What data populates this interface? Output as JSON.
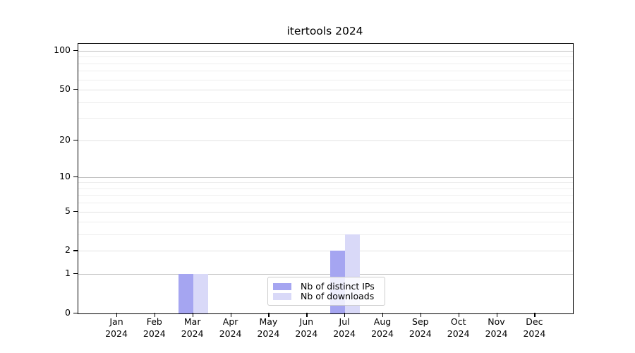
{
  "chart_data": {
    "type": "bar",
    "title": "itertools 2024",
    "categories": [
      "Jan 2024",
      "Feb 2024",
      "Mar 2024",
      "Apr 2024",
      "May 2024",
      "Jun 2024",
      "Jul 2024",
      "Aug 2024",
      "Sep 2024",
      "Oct 2024",
      "Nov 2024",
      "Dec 2024"
    ],
    "series": [
      {
        "name": "Nb of distinct IPs",
        "color": "#a5a5f1",
        "values": [
          0,
          0,
          1,
          0,
          0,
          0,
          2,
          0,
          0,
          0,
          0,
          0
        ]
      },
      {
        "name": "Nb of downloads",
        "color": "#d9d9f8",
        "values": [
          0,
          0,
          1,
          0,
          0,
          0,
          3,
          0,
          0,
          0,
          0,
          0
        ]
      }
    ],
    "yaxis": {
      "scale": "log-like (log1p), 0 at baseline",
      "tick_labels": [
        0,
        1,
        2,
        5,
        10,
        20,
        50,
        100
      ],
      "decade_gridlines": [
        1,
        10,
        100
      ],
      "mid_gridlines": [
        2,
        5,
        20,
        50
      ],
      "minor_gridlines": [
        3,
        4,
        6,
        7,
        8,
        9,
        30,
        40,
        60,
        70,
        80,
        90
      ],
      "top_value": 113.3
    },
    "legend": {
      "position": "lower center",
      "entries": [
        "Nb of distinct IPs",
        "Nb of downloads"
      ]
    },
    "colors": {
      "grid_decade": "#bfbfbf",
      "grid_mid": "#e2e2e2",
      "grid_minor": "#eeeeee",
      "spine": "#000000",
      "text": "#000000",
      "background": "#ffffff"
    }
  }
}
